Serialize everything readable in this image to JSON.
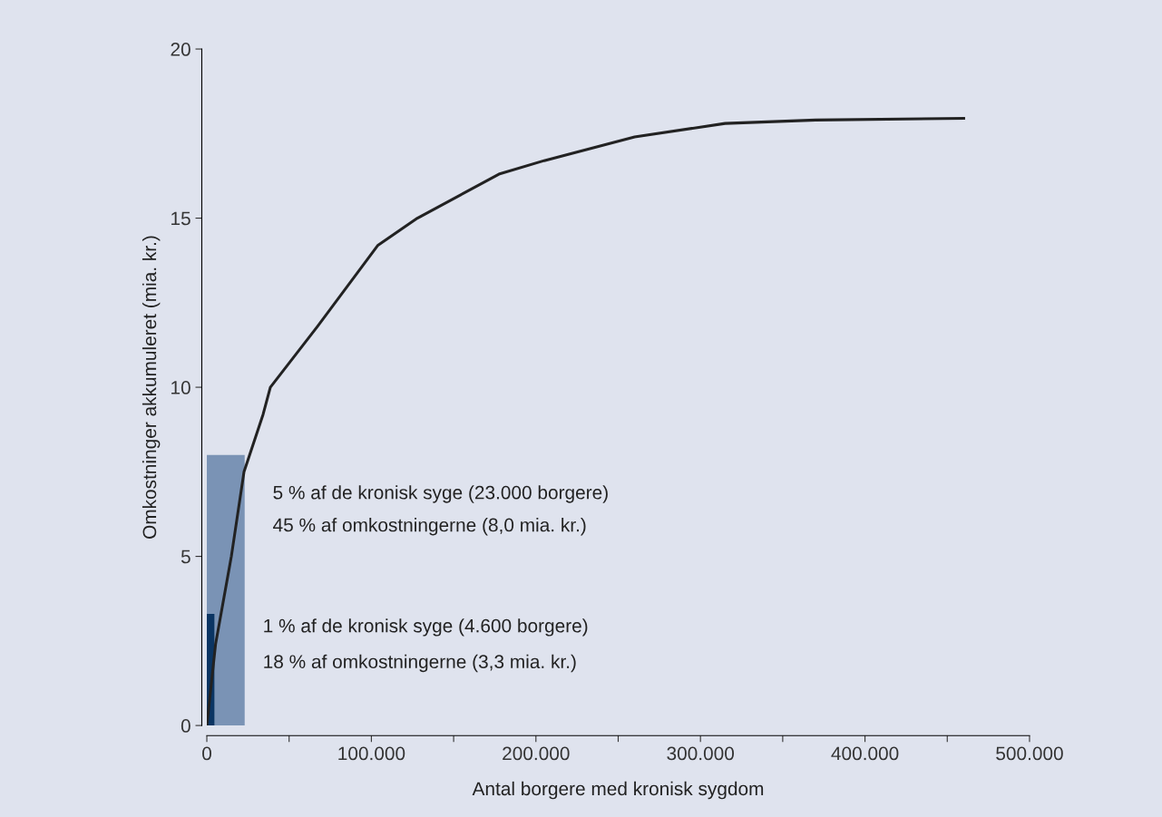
{
  "chart_data": {
    "type": "line",
    "xlabel": "Antal borgere med kronisk sygdom",
    "ylabel": "Omkostninger akkumuleret (mia. kr.)",
    "series": [
      {
        "type": "area",
        "color": "#7a93b5",
        "x": [
          0,
          23000
        ],
        "values": [
          8.0,
          8.0
        ]
      },
      {
        "type": "area",
        "color": "#0b3563",
        "x": [
          0,
          4600
        ],
        "values": [
          3.3,
          3.3
        ]
      },
      {
        "color": "#222222",
        "x": [
          0,
          1100,
          5300,
          14900,
          22600,
          34200,
          38600,
          67300,
          104000,
          128000,
          177500,
          205000,
          260000,
          315000,
          370000,
          460000
        ],
        "values": [
          0,
          0.5,
          2.4,
          5.0,
          7.5,
          9.2,
          10.0,
          11.8,
          14.2,
          15.0,
          16.3,
          16.7,
          17.4,
          17.8,
          17.9,
          17.95
        ]
      }
    ],
    "annotations": [
      "5 % af de kronisk syge (23.000 borgere)",
      "45 % af omkostningerne (8,0 mia. kr.)",
      "1 % af de kronisk syge (4.600 borgere)",
      "18 % af omkostningerne (3,3 mia. kr.)"
    ],
    "xlim": [
      0,
      500000
    ],
    "ylim": [
      0,
      20
    ],
    "xticks": [
      {
        "value": 0,
        "label": "0"
      },
      {
        "value": 50000,
        "label": null
      },
      {
        "value": 100000,
        "label": "100.000"
      },
      {
        "value": 150000,
        "label": null
      },
      {
        "value": 200000,
        "label": "200.000"
      },
      {
        "value": 250000,
        "label": null
      },
      {
        "value": 300000,
        "label": "300.000"
      },
      {
        "value": 350000,
        "label": null
      },
      {
        "value": 400000,
        "label": "400.000"
      },
      {
        "value": 450000,
        "label": null
      },
      {
        "value": 500000,
        "label": "500.000"
      }
    ],
    "yticks": [
      0,
      5,
      10,
      15,
      20
    ],
    "grid": false,
    "legend": false
  }
}
